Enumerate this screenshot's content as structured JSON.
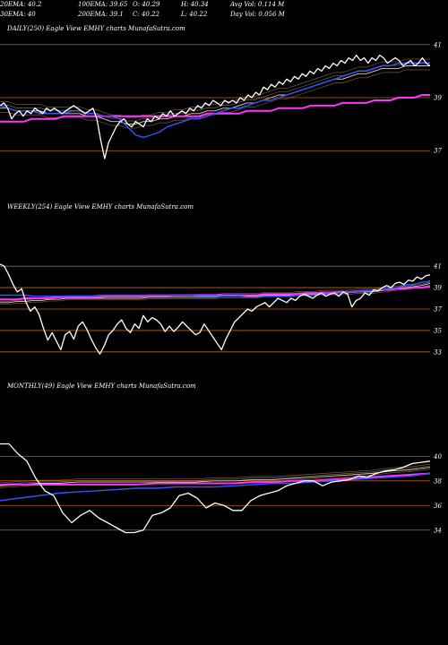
{
  "header": {
    "ema20": "20EMA: 40.2",
    "ema100": "100EMA: 39.65",
    "open": "O: 40.29",
    "high": "H: 40.34",
    "avg_vol": "Avg Vol: 0.114  M",
    "ema30": "30EMA: 40",
    "ema200": "200EMA: 39.1",
    "close": "C: 40.22",
    "low": "L: 40.22",
    "day_vol": "Day Vol: 0.056  M"
  },
  "panels": [
    {
      "title": "DAILY(250) Eagle   View  EMHY charts MunafaSutra.com",
      "ticks": [
        {
          "label": "41",
          "value": 41
        },
        {
          "label": "39",
          "value": 39
        },
        {
          "label": "37",
          "value": 37
        }
      ]
    },
    {
      "title": "WEEKLY(254) Eagle   View  EMHY charts MunafaSutra.com",
      "ticks": [
        {
          "label": "41",
          "value": 41
        },
        {
          "label": "39",
          "value": 39
        },
        {
          "label": "37",
          "value": 37
        },
        {
          "label": "35",
          "value": 35
        },
        {
          "label": "33",
          "value": 33
        }
      ]
    },
    {
      "title": "MONTHLY(49) Eagle   View  EMHY charts MunafaSutra.com",
      "ticks": [
        {
          "label": "40",
          "value": 40
        },
        {
          "label": "38",
          "value": 38
        },
        {
          "label": "36",
          "value": 36
        },
        {
          "label": "34",
          "value": 34
        }
      ]
    }
  ],
  "colors": {
    "price": "#ffffff",
    "ema_fast": "#3355ff",
    "ema_slow": "#ff33ff",
    "ema_mid": "#e8d0a0",
    "gridline": "#b8661e"
  },
  "chart_data": [
    {
      "type": "line",
      "title": "DAILY(250) Eagle   View  EMHY charts MunafaSutra.com",
      "ylim": [
        36.4,
        41.6
      ],
      "yticks": [
        41,
        39,
        37
      ],
      "series": [
        {
          "role": "price",
          "values": [
            38.7,
            38.8,
            38.6,
            38.2,
            38.4,
            38.5,
            38.3,
            38.5,
            38.4,
            38.6,
            38.5,
            38.4,
            38.6,
            38.5,
            38.6,
            38.5,
            38.4,
            38.5,
            38.6,
            38.7,
            38.6,
            38.5,
            38.4,
            38.5,
            38.6,
            38.2,
            37.4,
            36.7,
            37.3,
            37.6,
            37.9,
            38.1,
            38.2,
            38.0,
            37.9,
            38.1,
            38.0,
            37.9,
            38.2,
            38.1,
            38.3,
            38.2,
            38.4,
            38.3,
            38.5,
            38.3,
            38.4,
            38.5,
            38.4,
            38.6,
            38.5,
            38.7,
            38.6,
            38.8,
            38.7,
            38.9,
            38.8,
            38.7,
            38.9,
            38.8,
            38.9,
            38.8,
            39.0,
            38.9,
            39.1,
            39.0,
            39.2,
            39.1,
            39.4,
            39.3,
            39.5,
            39.4,
            39.6,
            39.5,
            39.7,
            39.6,
            39.8,
            39.7,
            39.9,
            39.8,
            40.0,
            39.9,
            40.1,
            40.0,
            40.2,
            40.1,
            40.3,
            40.2,
            40.4,
            40.3,
            40.5,
            40.4,
            40.6,
            40.4,
            40.5,
            40.3,
            40.5,
            40.4,
            40.6,
            40.5,
            40.3,
            40.4,
            40.5,
            40.4,
            40.2,
            40.3,
            40.4,
            40.2,
            40.3,
            40.5,
            40.3,
            40.2
          ]
        },
        {
          "role": "ema-fast",
          "values": [
            38.7,
            38.6,
            38.5,
            38.5,
            38.5,
            38.4,
            38.4,
            38.4,
            38.4,
            38.5,
            38.5,
            38.4,
            38.4,
            38.3,
            38.3,
            38.2,
            37.9,
            37.6,
            37.5,
            37.6,
            37.7,
            37.9,
            38.0,
            38.1,
            38.2,
            38.2,
            38.3,
            38.4,
            38.5,
            38.6,
            38.6,
            38.7,
            38.8,
            38.9,
            38.9,
            39.0,
            39.1,
            39.2,
            39.3,
            39.4,
            39.5,
            39.6,
            39.7,
            39.8,
            39.9,
            40.0,
            40.0,
            40.1,
            40.2,
            40.2,
            40.3,
            40.3,
            40.3,
            40.3,
            40.3
          ]
        },
        {
          "role": "ema-mid",
          "values": [
            38.6,
            38.6,
            38.5,
            38.5,
            38.5,
            38.5,
            38.4,
            38.4,
            38.4,
            38.4,
            38.4,
            38.3,
            38.3,
            38.2,
            38.1,
            38.1,
            38.0,
            38.0,
            38.1,
            38.1,
            38.2,
            38.2,
            38.3,
            38.3,
            38.4,
            38.4,
            38.5,
            38.5,
            38.6,
            38.6,
            38.7,
            38.8,
            38.8,
            38.9,
            39.0,
            39.1,
            39.1,
            39.2,
            39.3,
            39.4,
            39.5,
            39.6,
            39.7,
            39.7,
            39.8,
            39.9,
            39.9,
            40.0,
            40.1,
            40.1,
            40.1,
            40.2,
            40.2,
            40.2,
            40.2
          ]
        },
        {
          "role": "ema-slow",
          "values": [
            38.1,
            38.1,
            38.1,
            38.1,
            38.2,
            38.2,
            38.2,
            38.2,
            38.3,
            38.3,
            38.3,
            38.3,
            38.3,
            38.3,
            38.3,
            38.3,
            38.3,
            38.3,
            38.3,
            38.3,
            38.3,
            38.3,
            38.3,
            38.3,
            38.3,
            38.3,
            38.4,
            38.4,
            38.4,
            38.4,
            38.4,
            38.5,
            38.5,
            38.5,
            38.5,
            38.6,
            38.6,
            38.6,
            38.6,
            38.7,
            38.7,
            38.7,
            38.7,
            38.8,
            38.8,
            38.8,
            38.8,
            38.9,
            38.9,
            38.9,
            39.0,
            39.0,
            39.0,
            39.1,
            39.1
          ]
        }
      ]
    },
    {
      "type": "line",
      "title": "WEEKLY(254) Eagle   View  EMHY charts MunafaSutra.com",
      "ylim": [
        32.4,
        41.6
      ],
      "yticks": [
        41,
        39,
        37,
        35,
        33
      ],
      "series": [
        {
          "role": "price",
          "values": [
            41.2,
            41.0,
            40.2,
            39.3,
            38.6,
            38.9,
            37.6,
            36.8,
            37.2,
            36.5,
            35.2,
            34.1,
            34.8,
            34.0,
            33.2,
            34.6,
            34.9,
            34.2,
            35.4,
            35.8,
            35.1,
            34.2,
            33.4,
            32.8,
            33.6,
            34.6,
            35.0,
            35.6,
            36.0,
            35.2,
            34.8,
            35.6,
            35.2,
            36.4,
            35.8,
            36.2,
            36.0,
            35.6,
            34.9,
            35.4,
            34.9,
            35.3,
            35.8,
            35.4,
            35.0,
            34.6,
            34.8,
            35.6,
            35.0,
            34.4,
            33.8,
            33.2,
            34.2,
            35.0,
            35.8,
            36.2,
            36.6,
            37.0,
            36.8,
            37.2,
            37.4,
            37.6,
            37.2,
            37.6,
            38.0,
            37.8,
            37.6,
            38.0,
            37.8,
            38.2,
            38.4,
            38.2,
            38.0,
            38.3,
            38.5,
            38.2,
            38.4,
            38.5,
            38.2,
            38.6,
            38.4,
            37.2,
            37.8,
            38.0,
            38.5,
            38.3,
            38.8,
            38.7,
            39.0,
            39.2,
            39.0,
            39.4,
            39.5,
            39.3,
            39.7,
            39.6,
            40.0,
            39.8,
            40.1,
            40.2
          ]
        },
        {
          "role": "ema-fast",
          "values": [
            38.3,
            38.3,
            38.3,
            38.3,
            38.2,
            38.2,
            38.2,
            38.2,
            38.2,
            38.2,
            38.2,
            38.2,
            38.3,
            38.3,
            38.3,
            38.3,
            38.3,
            38.3,
            38.3,
            38.3,
            38.3,
            38.3,
            38.3,
            38.3,
            38.2,
            38.2,
            38.2,
            38.2,
            38.2,
            38.2,
            38.1,
            38.1,
            38.2,
            38.2,
            38.2,
            38.2,
            38.3,
            38.3,
            38.3,
            38.4,
            38.4,
            38.5,
            38.6,
            38.6,
            38.7,
            38.7,
            38.8,
            38.9,
            39.0,
            39.2,
            39.3,
            39.5,
            39.6
          ]
        },
        {
          "role": "ema-mid",
          "values": [
            37.6,
            37.6,
            37.7,
            37.7,
            37.8,
            37.8,
            37.9,
            37.9,
            38.0,
            38.0,
            38.0,
            38.0,
            38.0,
            38.0,
            38.0,
            38.0,
            38.0,
            38.0,
            38.1,
            38.1,
            38.1,
            38.1,
            38.1,
            38.1,
            38.1,
            38.1,
            38.1,
            38.2,
            38.2,
            38.2,
            38.2,
            38.2,
            38.3,
            38.3,
            38.3,
            38.3,
            38.4,
            38.4,
            38.4,
            38.5,
            38.5,
            38.5,
            38.5,
            38.6,
            38.6,
            38.6,
            38.7,
            38.8,
            38.9,
            39.0,
            39.1,
            39.2,
            39.4
          ]
        },
        {
          "role": "ema-slow",
          "values": [
            37.9,
            37.9,
            37.9,
            38.0,
            38.0,
            38.0,
            38.0,
            38.1,
            38.1,
            38.1,
            38.1,
            38.1,
            38.1,
            38.2,
            38.2,
            38.2,
            38.2,
            38.2,
            38.2,
            38.2,
            38.2,
            38.3,
            38.3,
            38.3,
            38.3,
            38.3,
            38.3,
            38.3,
            38.3,
            38.3,
            38.3,
            38.3,
            38.4,
            38.4,
            38.4,
            38.4,
            38.4,
            38.5,
            38.5,
            38.5,
            38.5,
            38.6,
            38.6,
            38.6,
            38.7,
            38.7,
            38.8,
            38.8,
            38.9,
            38.9,
            39.0,
            39.0,
            39.1
          ]
        }
      ]
    },
    {
      "type": "line",
      "title": "MONTHLY(49) Eagle   View  EMHY charts MunafaSutra.com",
      "ylim": [
        33.4,
        41.4
      ],
      "yticks": [
        40,
        38,
        36,
        34
      ],
      "series": [
        {
          "role": "price",
          "values": [
            41.0,
            41.0,
            40.2,
            39.6,
            38.2,
            37.2,
            36.8,
            35.4,
            34.6,
            35.2,
            35.6,
            35.0,
            34.6,
            34.2,
            33.8,
            33.8,
            34.0,
            35.2,
            35.4,
            35.8,
            36.8,
            37.0,
            36.6,
            35.8,
            36.2,
            36.0,
            35.6,
            35.6,
            36.4,
            36.8,
            37.0,
            37.2,
            37.6,
            37.8,
            38.0,
            38.0,
            37.6,
            37.9,
            38.0,
            38.1,
            38.4,
            38.3,
            38.6,
            38.8,
            38.9,
            39.1,
            39.4,
            39.5,
            39.6
          ]
        },
        {
          "role": "ema-fast",
          "values": [
            36.4,
            36.6,
            36.8,
            37.0,
            37.1,
            37.2,
            37.3,
            37.4,
            37.4,
            37.5,
            37.5,
            37.5,
            37.6,
            37.7,
            37.8,
            37.8,
            37.9,
            38.0,
            38.1,
            38.2,
            38.3,
            38.4,
            38.6
          ]
        },
        {
          "role": "ema-mid",
          "values": [
            37.6,
            37.7,
            37.8,
            37.8,
            37.9,
            37.9,
            37.9,
            37.9,
            37.9,
            37.9,
            37.9,
            38.0,
            38.0,
            38.1,
            38.1,
            38.2,
            38.3,
            38.4,
            38.5,
            38.6,
            38.8,
            38.9,
            39.1
          ]
        },
        {
          "role": "ema-slow",
          "values": [
            37.7,
            37.7,
            37.7,
            37.7,
            37.7,
            37.7,
            37.7,
            37.7,
            37.8,
            37.8,
            37.8,
            37.8,
            37.8,
            37.9,
            37.9,
            38.0,
            38.0,
            38.1,
            38.2,
            38.3,
            38.4,
            38.5,
            38.6
          ]
        }
      ]
    }
  ]
}
